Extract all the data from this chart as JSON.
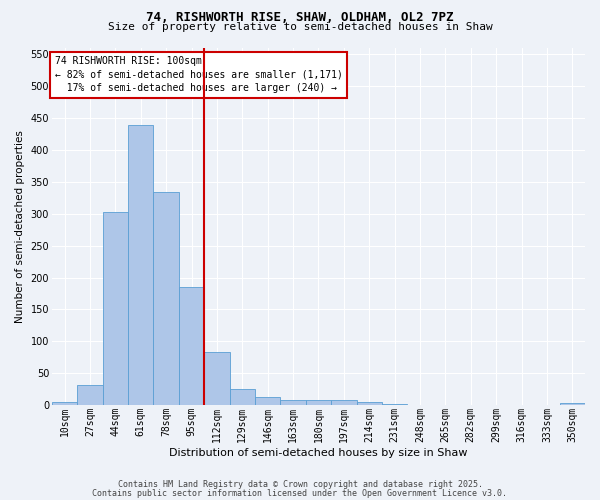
{
  "title1": "74, RISHWORTH RISE, SHAW, OLDHAM, OL2 7PZ",
  "title2": "Size of property relative to semi-detached houses in Shaw",
  "xlabel": "Distribution of semi-detached houses by size in Shaw",
  "ylabel": "Number of semi-detached properties",
  "categories": [
    "10sqm",
    "27sqm",
    "44sqm",
    "61sqm",
    "78sqm",
    "95sqm",
    "112sqm",
    "129sqm",
    "146sqm",
    "163sqm",
    "180sqm",
    "197sqm",
    "214sqm",
    "231sqm",
    "248sqm",
    "265sqm",
    "282sqm",
    "299sqm",
    "316sqm",
    "333sqm",
    "350sqm"
  ],
  "values": [
    5,
    31,
    302,
    438,
    334,
    185,
    83,
    25,
    13,
    8,
    8,
    8,
    5,
    2,
    0,
    0,
    0,
    0,
    0,
    0,
    3
  ],
  "bar_color": "#aec6e8",
  "bar_edge_color": "#5a9fd4",
  "red_line_index": 6,
  "annotation_line1": "74 RISHWORTH RISE: 100sqm",
  "annotation_line2": "← 82% of semi-detached houses are smaller (1,171)",
  "annotation_line3": "  17% of semi-detached houses are larger (240) →",
  "annotation_box_color": "#ffffff",
  "annotation_box_edge": "#cc0000",
  "red_line_color": "#cc0000",
  "ylim": [
    0,
    560
  ],
  "yticks": [
    0,
    50,
    100,
    150,
    200,
    250,
    300,
    350,
    400,
    450,
    500,
    550
  ],
  "footer1": "Contains HM Land Registry data © Crown copyright and database right 2025.",
  "footer2": "Contains public sector information licensed under the Open Government Licence v3.0.",
  "bg_color": "#eef2f8",
  "grid_color": "#ffffff",
  "title1_fontsize": 9,
  "title2_fontsize": 8,
  "ylabel_fontsize": 7.5,
  "xlabel_fontsize": 8,
  "tick_fontsize": 7,
  "annot_fontsize": 7,
  "footer_fontsize": 6
}
